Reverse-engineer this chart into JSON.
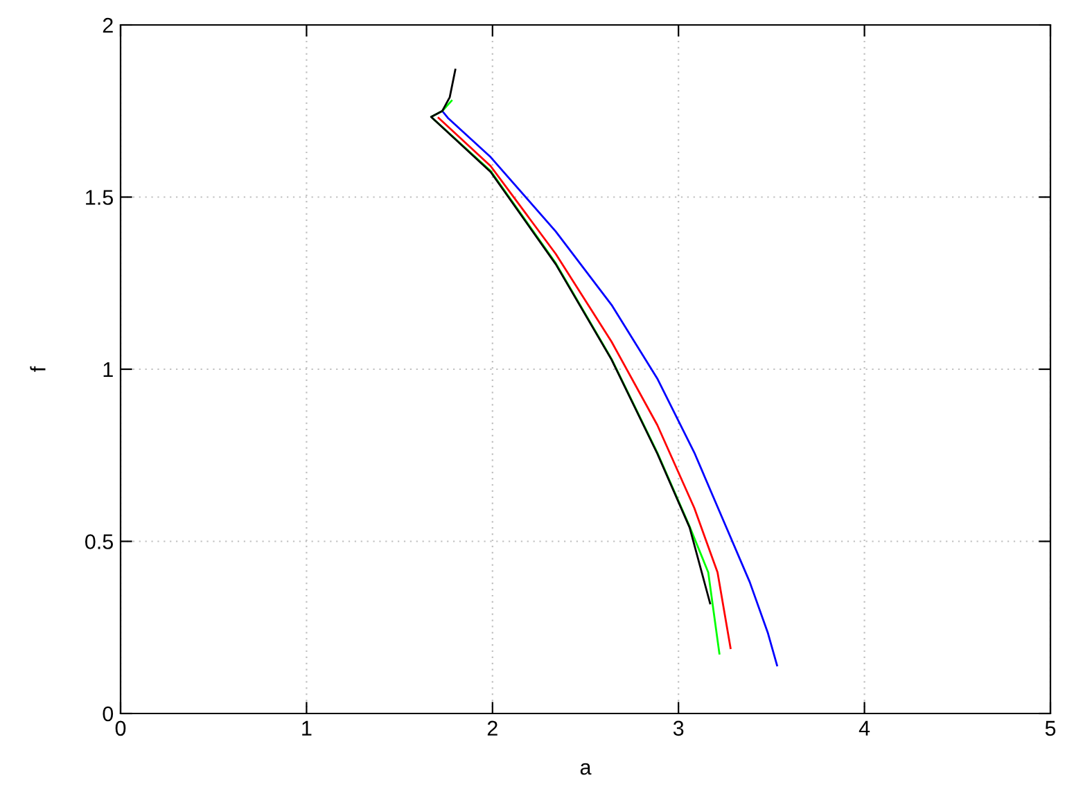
{
  "chart_data": {
    "type": "line",
    "xlabel": "a",
    "ylabel": "f",
    "xlim": [
      0,
      5
    ],
    "ylim": [
      0,
      2
    ],
    "xticks": [
      0,
      1,
      2,
      3,
      4,
      5
    ],
    "yticks": [
      0,
      0.5,
      1,
      1.5,
      2
    ],
    "grid": true,
    "marker": "none",
    "line_style": "solid",
    "series": [
      {
        "color": "#0000ff",
        "x": [
          1.73,
          1.76,
          1.99,
          2.34,
          2.64,
          2.886,
          3.085,
          3.234,
          3.383,
          3.48,
          3.53
        ],
        "values": [
          1.75,
          1.73,
          1.616,
          1.4,
          1.187,
          0.973,
          0.758,
          0.57,
          0.382,
          0.235,
          0.14
        ]
      },
      {
        "color": "#ff0000",
        "x": [
          1.71,
          1.99,
          2.34,
          2.64,
          2.886,
          3.085,
          3.21,
          3.28
        ],
        "values": [
          1.73,
          1.59,
          1.335,
          1.08,
          0.838,
          0.597,
          0.41,
          0.19
        ]
      },
      {
        "color": "#00ff00",
        "x": [
          1.78,
          1.73,
          1.67,
          1.99,
          2.34,
          2.64,
          2.886,
          3.06,
          3.16,
          3.22
        ],
        "values": [
          1.78,
          1.75,
          1.733,
          1.576,
          1.308,
          1.03,
          0.758,
          0.543,
          0.41,
          0.174
        ]
      },
      {
        "color": "#000000",
        "x": [
          1.8,
          1.77,
          1.73,
          1.67,
          1.99,
          2.34,
          2.64,
          2.886,
          3.06,
          3.17
        ],
        "values": [
          1.87,
          1.79,
          1.75,
          1.733,
          1.573,
          1.305,
          1.028,
          0.755,
          0.54,
          0.32
        ]
      }
    ]
  }
}
